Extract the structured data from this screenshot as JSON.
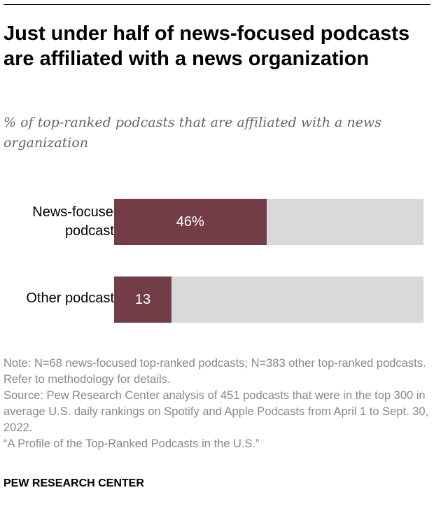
{
  "chart_data": {
    "type": "bar",
    "orientation": "horizontal",
    "title": "Just under half of news-focused podcasts are affiliated with a news organization",
    "subtitle": "% of top-ranked podcasts that are affiliated with a news organization",
    "categories": [
      "News-focused podcasts",
      "Other podcasts"
    ],
    "values": [
      46,
      13
    ],
    "value_labels": [
      "46%",
      "13"
    ],
    "xlim": [
      0,
      100
    ],
    "grid": false,
    "colors": {
      "bar": "#733d47",
      "track": "#d9d9d9"
    }
  },
  "notes": {
    "note": "Note: N=68 news-focused top-ranked podcasts; N=383 other top-ranked podcasts. Refer to methodology for details.",
    "source": "Source: Pew Research Center analysis of 451 podcasts that were in the top 300 in average U.S. daily rankings on Spotify and Apple Podcasts from April 1 to Sept. 30, 2022.",
    "report": "“A Profile of the Top-Ranked Podcasts in the U.S.”"
  },
  "brand": "PEW RESEARCH CENTER"
}
